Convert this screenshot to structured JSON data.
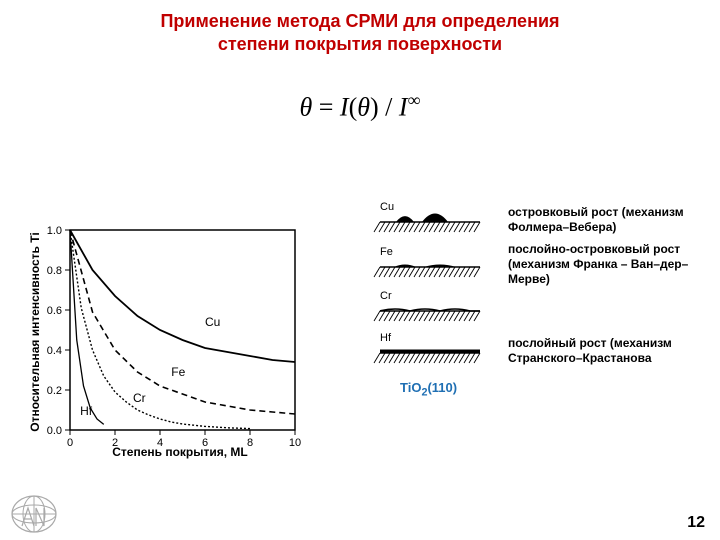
{
  "title": {
    "line1": "Применение метода СРМИ для определения",
    "line2": "степени покрытия поверхности",
    "fontsize": 18,
    "color": "#c00000"
  },
  "formula": {
    "text_parts": [
      "θ ",
      "= ",
      "I",
      "(",
      "θ",
      ") / ",
      "I"
    ],
    "exponent": "∞",
    "fontsize": 26,
    "color": "#000000"
  },
  "chart": {
    "type": "line",
    "xlabel": "Степень покрытия, ML",
    "ylabel": "Относительная интенсивность Ti",
    "xlim": [
      0,
      10
    ],
    "ylim": [
      0,
      1.0
    ],
    "xtick_step": 2,
    "ytick_step": 0.2,
    "xticks": [
      0,
      2,
      4,
      6,
      8,
      10
    ],
    "yticks": [
      0.0,
      0.2,
      0.4,
      0.6,
      0.8,
      1.0
    ],
    "line_color": "#000000",
    "axis_color": "#000000",
    "tick_fontsize": 11,
    "series": {
      "Cu": {
        "label": "Cu",
        "dash": "none",
        "width": 1.8,
        "points": [
          [
            0,
            1.0
          ],
          [
            1,
            0.8
          ],
          [
            2,
            0.67
          ],
          [
            3,
            0.57
          ],
          [
            4,
            0.5
          ],
          [
            5,
            0.45
          ],
          [
            6,
            0.41
          ],
          [
            7,
            0.39
          ],
          [
            8,
            0.37
          ],
          [
            9,
            0.35
          ],
          [
            10,
            0.34
          ]
        ]
      },
      "Fe": {
        "label": "Fe",
        "dash": "6,4",
        "width": 1.6,
        "points": [
          [
            0,
            1.0
          ],
          [
            1,
            0.59
          ],
          [
            2,
            0.4
          ],
          [
            3,
            0.29
          ],
          [
            4,
            0.22
          ],
          [
            5,
            0.18
          ],
          [
            6,
            0.14
          ],
          [
            7,
            0.12
          ],
          [
            8,
            0.1
          ],
          [
            9,
            0.09
          ],
          [
            10,
            0.08
          ]
        ]
      },
      "Cr": {
        "label": "Cr",
        "dash": "2,2",
        "width": 1.4,
        "points": [
          [
            0,
            1.0
          ],
          [
            0.5,
            0.61
          ],
          [
            1,
            0.4
          ],
          [
            1.5,
            0.27
          ],
          [
            2,
            0.19
          ],
          [
            2.5,
            0.14
          ],
          [
            3,
            0.1
          ],
          [
            3.5,
            0.075
          ],
          [
            4,
            0.055
          ],
          [
            4.5,
            0.04
          ],
          [
            5,
            0.03
          ],
          [
            6,
            0.018
          ],
          [
            7,
            0.011
          ],
          [
            8,
            0.007
          ]
        ]
      },
      "Hf": {
        "label": "Hf",
        "dash": "none",
        "width": 1.3,
        "points": [
          [
            0,
            1.0
          ],
          [
            0.3,
            0.45
          ],
          [
            0.6,
            0.22
          ],
          [
            0.9,
            0.11
          ],
          [
            1.2,
            0.055
          ],
          [
            1.5,
            0.028
          ]
        ]
      }
    },
    "series_label_pos": {
      "Cu": [
        6.0,
        0.52
      ],
      "Fe": [
        4.5,
        0.27
      ],
      "Cr": [
        2.8,
        0.14
      ],
      "Hf": [
        0.45,
        0.075
      ]
    }
  },
  "growth_modes": {
    "hatch_color": "#000000",
    "label_color": "#000000",
    "items": [
      {
        "element": "Cu",
        "shape": "island",
        "desc": "островковый рост (механизм Фолмера–Вебера)"
      },
      {
        "element": "Fe",
        "shape": "low_island",
        "desc": "послойно-островковый рост (механизм Франка – Ван–дер–Мерве)"
      },
      {
        "element": "Cr",
        "shape": "wavy",
        "desc": ""
      },
      {
        "element": "Hf",
        "shape": "flat",
        "desc": "послойный рост (механизм Странского–Крастанова"
      }
    ]
  },
  "substrate": {
    "label": "TiO",
    "sub": "2",
    "suffix": "(110)",
    "color": "#1f6fb3"
  },
  "page_number": "12",
  "logo": {
    "stroke": "#a9a9a9"
  }
}
